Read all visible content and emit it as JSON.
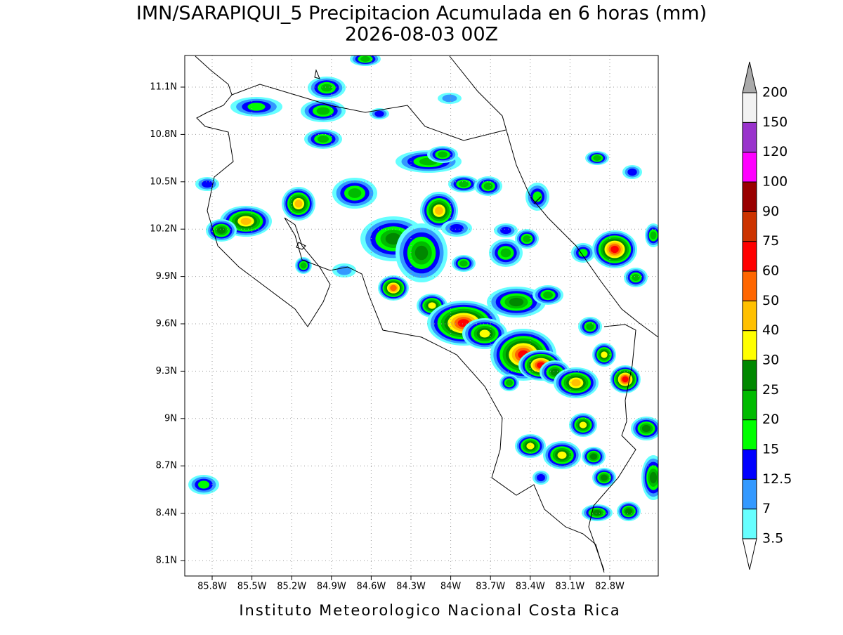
{
  "header": {
    "title": "IMN/SARAPIQUI_5 Precipitacion Acumulada en 6 horas (mm)",
    "subtitle": "2026-08-03 00Z"
  },
  "map": {
    "lat_ticks": [
      "11.1N",
      "10.8N",
      "10.5N",
      "10.2N",
      "9.9N",
      "9.6N",
      "9.3N",
      "9N",
      "8.7N",
      "8.4N",
      "8.1N"
    ],
    "lon_ticks": [
      "85.8W",
      "85.5W",
      "85.2W",
      "84.9W",
      "84.6W",
      "84.3W",
      "84W",
      "83.7W",
      "83.4W",
      "83.1W",
      "82.8W"
    ]
  },
  "colorbar": {
    "levels": [
      3.5,
      7,
      12.5,
      15,
      20,
      25,
      30,
      40,
      50,
      60,
      75,
      90,
      100,
      120,
      150,
      200
    ],
    "colors": [
      "#66ffff",
      "#3399ff",
      "#0000ff",
      "#00ff00",
      "#00bb00",
      "#008800",
      "#ffff00",
      "#ffc000",
      "#ff6600",
      "#ff0000",
      "#cc3300",
      "#990000",
      "#ff00ff",
      "#9933cc",
      "#f2f2f2"
    ],
    "over_color": "#aaaaaa",
    "under_color": "#ffffff"
  },
  "footer": "Instituto Meteorologico Nacional Costa Rica"
}
